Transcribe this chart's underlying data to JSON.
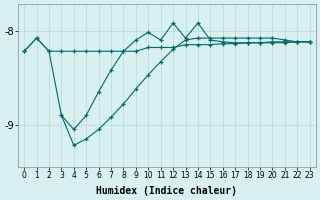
{
  "xlabel": "Humidex (Indice chaleur)",
  "bg_color": "#d8f0f0",
  "line_color": "#006b6b",
  "xlim": [
    -0.5,
    23.5
  ],
  "ylim": [
    -9.45,
    -7.72
  ],
  "yticks": [
    -9,
    -8
  ],
  "xticks": [
    0,
    1,
    2,
    3,
    4,
    5,
    6,
    7,
    8,
    9,
    10,
    11,
    12,
    13,
    14,
    15,
    16,
    17,
    18,
    19,
    20,
    21,
    22,
    23
  ],
  "grid_color": "#b8dede",
  "line1_x": [
    0,
    1,
    2,
    3,
    4,
    5,
    6,
    7,
    8,
    9,
    10,
    11,
    12,
    13,
    14,
    15,
    16,
    17,
    18,
    19,
    20,
    21,
    22,
    23
  ],
  "line1_y": [
    -8.22,
    -8.08,
    -8.22,
    -8.22,
    -8.22,
    -8.22,
    -8.22,
    -8.22,
    -8.22,
    -8.22,
    -8.18,
    -8.18,
    -8.18,
    -8.15,
    -8.15,
    -8.15,
    -8.14,
    -8.14,
    -8.13,
    -8.13,
    -8.13,
    -8.13,
    -8.12,
    -8.12
  ],
  "line2_x": [
    0,
    1,
    2,
    3,
    4,
    5,
    6,
    7,
    8,
    9,
    10,
    11,
    12,
    13,
    14,
    15,
    16,
    17,
    18,
    19,
    20,
    21,
    22,
    23
  ],
  "line2_y": [
    -8.22,
    -8.08,
    -8.22,
    -8.9,
    -9.05,
    -8.9,
    -8.65,
    -8.42,
    -8.22,
    -8.1,
    -8.02,
    -8.1,
    -7.92,
    -8.08,
    -7.92,
    -8.1,
    -8.12,
    -8.13,
    -8.13,
    -8.13,
    -8.12,
    -8.12,
    -8.12,
    -8.12
  ],
  "line3_x": [
    3,
    4,
    5,
    6,
    7,
    8,
    9,
    10,
    11,
    12,
    13,
    14,
    15,
    16,
    17,
    18,
    19,
    20,
    21,
    22,
    23
  ],
  "line3_y": [
    -8.9,
    -9.22,
    -9.15,
    -9.05,
    -8.92,
    -8.78,
    -8.62,
    -8.47,
    -8.33,
    -8.2,
    -8.1,
    -8.08,
    -8.08,
    -8.08,
    -8.08,
    -8.08,
    -8.08,
    -8.08,
    -8.1,
    -8.12,
    -8.12
  ]
}
